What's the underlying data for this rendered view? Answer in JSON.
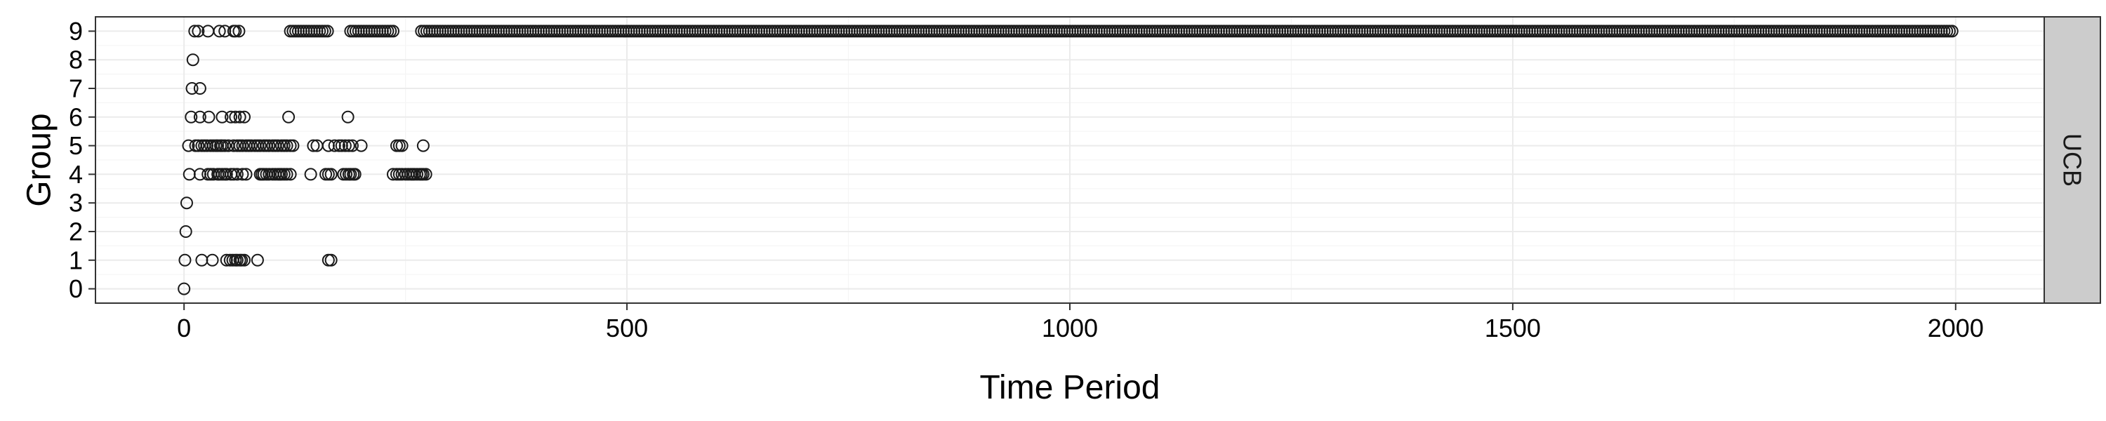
{
  "chart_data": {
    "type": "scatter",
    "xlabel": "Time Period",
    "ylabel": "Group",
    "facet_label": "UCB",
    "xlim": [
      -100,
      2100
    ],
    "ylim": [
      -0.5,
      9.5
    ],
    "x_ticks": [
      0,
      500,
      1000,
      1500,
      2000
    ],
    "y_ticks": [
      0,
      1,
      2,
      3,
      4,
      5,
      6,
      7,
      8,
      9
    ],
    "grid": true,
    "legend": "none",
    "points": {
      "0": [
        0
      ],
      "1": [
        1,
        20,
        32,
        48,
        52,
        55,
        58,
        60,
        63,
        65,
        68,
        83,
        163,
        166
      ],
      "2": [
        2
      ],
      "3": [
        3
      ],
      "4": [
        6,
        18,
        27,
        30,
        33,
        38,
        40,
        43,
        46,
        48,
        53,
        56,
        60,
        66,
        70,
        86,
        88,
        90,
        93,
        96,
        100,
        103,
        106,
        108,
        110,
        113,
        116,
        120,
        143,
        160,
        163,
        166,
        180,
        183,
        186,
        188,
        191,
        193,
        236,
        240,
        243,
        246,
        250,
        253,
        256,
        258,
        260,
        263,
        266,
        268,
        270,
        273
      ],
      "5": [
        5,
        13,
        16,
        20,
        23,
        26,
        30,
        33,
        36,
        38,
        41,
        43,
        46,
        50,
        56,
        60,
        63,
        66,
        70,
        73,
        76,
        80,
        83,
        86,
        90,
        93,
        96,
        100,
        103,
        106,
        110,
        113,
        116,
        120,
        123,
        146,
        150,
        163,
        170,
        175,
        178,
        182,
        186,
        190,
        200,
        240,
        243,
        246,
        270
      ],
      "6": [
        8,
        18,
        28,
        43,
        53,
        58,
        63,
        68,
        118,
        185
      ],
      "7": [
        9,
        18
      ],
      "8": [
        10
      ],
      "9": [
        12,
        16,
        27,
        40,
        46,
        56,
        58,
        62
      ]
    },
    "dense_runs": [
      {
        "group": 9,
        "from": 120,
        "to": 162,
        "step": 3
      },
      {
        "group": 9,
        "from": 188,
        "to": 238,
        "step": 3
      },
      {
        "group": 9,
        "from": 268,
        "to": 1998,
        "step": 3
      }
    ]
  }
}
